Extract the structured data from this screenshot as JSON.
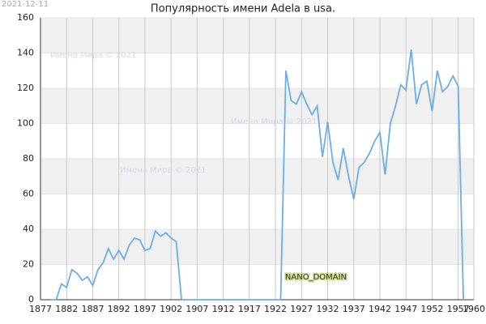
{
  "chart_data": {
    "type": "line",
    "title": "Популярность имени Adela в usa.",
    "date": "2021-12-11",
    "watermark": "Имена Мира © 2021",
    "domain_label": "NANO_DOMAIN",
    "x": [
      1879,
      1880,
      1881,
      1882,
      1883,
      1884,
      1885,
      1886,
      1887,
      1888,
      1889,
      1890,
      1891,
      1892,
      1893,
      1894,
      1895,
      1896,
      1897,
      1898,
      1899,
      1900,
      1901,
      1902,
      1903,
      1904,
      1905,
      1906,
      1907,
      1908,
      1909,
      1910,
      1911,
      1912,
      1913,
      1914,
      1915,
      1916,
      1917,
      1918,
      1919,
      1920,
      1921,
      1922,
      1923,
      1924,
      1925,
      1926,
      1927,
      1928,
      1929,
      1930,
      1931,
      1932,
      1933,
      1934,
      1935,
      1936,
      1937,
      1938,
      1939,
      1940,
      1941,
      1942,
      1943,
      1944,
      1945,
      1946,
      1947,
      1948,
      1949,
      1950,
      1951,
      1952,
      1953,
      1954,
      1955,
      1956,
      1957,
      1958
    ],
    "values": [
      0,
      0,
      9,
      7,
      17,
      15,
      11,
      13,
      8,
      17,
      21,
      29,
      23,
      28,
      23,
      31,
      35,
      34,
      28,
      29,
      39,
      36,
      38,
      35,
      33,
      0,
      0,
      0,
      0,
      0,
      0,
      0,
      0,
      0,
      0,
      0,
      0,
      0,
      0,
      0,
      0,
      0,
      0,
      0,
      0,
      130,
      113,
      111,
      118,
      111,
      105,
      110,
      81,
      101,
      78,
      68,
      86,
      70,
      57,
      75,
      78,
      83,
      90,
      95,
      71,
      100,
      110,
      122,
      119,
      142,
      111,
      122,
      124,
      107,
      130,
      118,
      121,
      127,
      121,
      0
    ],
    "color": "#6aaee8",
    "xlim": [
      1877,
      1960
    ],
    "xticks": [
      1877,
      1882,
      1887,
      1892,
      1897,
      1902,
      1907,
      1912,
      1917,
      1922,
      1927,
      1932,
      1937,
      1942,
      1947,
      1952,
      1957,
      1960
    ],
    "ylim": [
      0,
      160
    ],
    "yticks": [
      0,
      20,
      40,
      60,
      80,
      100,
      120,
      140,
      160
    ],
    "grid": true
  }
}
